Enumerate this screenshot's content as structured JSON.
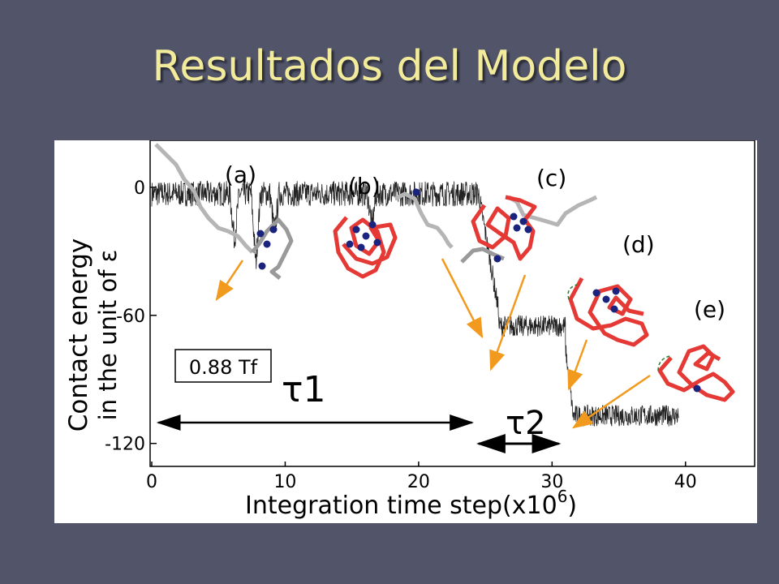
{
  "slide": {
    "title": "Resultados del Modelo"
  },
  "chart_data": {
    "type": "line",
    "xlabel_main": "Integration time step(x10",
    "xlabel_exp": "6",
    "xlabel_close": ")",
    "ylabel_line1": "Contact energy",
    "ylabel_line2": "in the unit of ε",
    "xlim": [
      0,
      45
    ],
    "ylim": [
      -130,
      22
    ],
    "x_ticks": [
      0,
      10,
      20,
      30,
      40
    ],
    "y_ticks": [
      0,
      -60,
      -120
    ],
    "x_tick_labels": [
      "0",
      "10",
      "20",
      "30",
      "40"
    ],
    "y_tick_labels": [
      "0",
      "-60",
      "-120"
    ],
    "temperature_label": "0.88 Tf",
    "tau1_label": "τ1",
    "tau2_label": "τ2",
    "tau1_span": [
      0.5,
      24
    ],
    "tau2_span": [
      24.5,
      30.5
    ],
    "series": [
      {
        "segments": [
          {
            "x": [
              0,
              24.5
            ],
            "level": -3,
            "noise": 6
          },
          {
            "x": [
              24.5,
              26
            ],
            "level_from": -3,
            "level_to": -58,
            "noise": 5
          },
          {
            "x": [
              26,
              31
            ],
            "level": -65,
            "noise": 5
          },
          {
            "x": [
              31,
              31.6
            ],
            "level_from": -75,
            "level_to": -108,
            "noise": 4
          },
          {
            "x": [
              31.6,
              39.5
            ],
            "level": -107,
            "noise": 5
          }
        ]
      }
    ],
    "dips": [
      {
        "x": 6.2,
        "depth": -22
      },
      {
        "x": 7.8,
        "depth": -33
      },
      {
        "x": 9.2,
        "depth": -18
      },
      {
        "x": 16.5,
        "depth": -15
      }
    ],
    "structures": [
      {
        "label": "(a)"
      },
      {
        "label": "(b)"
      },
      {
        "label": "(c)"
      },
      {
        "label": "(d)"
      },
      {
        "label": "(e)"
      }
    ]
  }
}
